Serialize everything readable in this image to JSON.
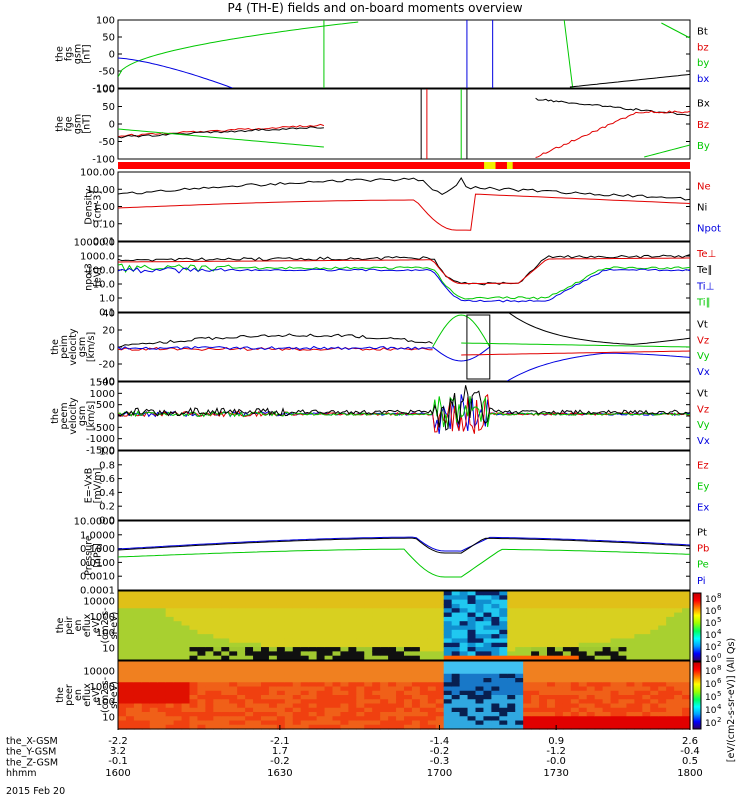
{
  "title": "P4 (TH-E) fields and on-board moments overview",
  "date_label": "2015 Feb 20",
  "colors": {
    "black": "#000000",
    "red": "#e00000",
    "green": "#00c800",
    "blue": "#0000e0",
    "yellow": "#f0f000",
    "bar_red": "#ff0000"
  },
  "chart_data": [
    {
      "type": "line",
      "id": "fgs",
      "ylabel": [
        "the",
        "fgs",
        "gsm",
        "[nT]"
      ],
      "yticks": [
        "100",
        "50",
        "0",
        "-50",
        "-100"
      ],
      "ylim": [
        -100,
        100
      ],
      "legend": [
        {
          "name": "Bt",
          "color": "#000000"
        },
        {
          "name": "bz",
          "color": "#e00000"
        },
        {
          "name": "by",
          "color": "#00c800"
        },
        {
          "name": "bx",
          "color": "#0000e0"
        }
      ]
    },
    {
      "type": "line",
      "id": "fge",
      "ylabel": [
        "the",
        "fge",
        "gsm",
        "[nT]"
      ],
      "yticks": [
        "100",
        "50",
        "0",
        "-50",
        "-100"
      ],
      "ylim": [
        -120,
        120
      ],
      "legend": [
        {
          "name": "Bx",
          "color": "#000000"
        },
        {
          "name": "Bz",
          "color": "#e00000"
        },
        {
          "name": "By",
          "color": "#00c800"
        }
      ]
    },
    {
      "type": "line",
      "id": "density",
      "ylabel": [
        "Density",
        "[cm-3]"
      ],
      "yticks": [
        "100.00",
        "10.00",
        "1.00",
        "0.10",
        "0.01"
      ],
      "ylim": [
        0.005,
        300
      ],
      "scale": "log",
      "legend": [
        {
          "name": "Ne",
          "color": "#e00000"
        },
        {
          "name": "Ni",
          "color": "#000000"
        },
        {
          "name": "Npot",
          "color": "#0000e0"
        }
      ]
    },
    {
      "type": "line",
      "id": "temperature",
      "ylabel": [
        "npot3",
        "[eV]"
      ],
      "yticks": [
        "10000.0",
        "1000.0",
        "100.0",
        "10.0",
        "1.0",
        "0.1"
      ],
      "ylim": [
        0.1,
        10000
      ],
      "scale": "log",
      "legend": [
        {
          "name": "Te⊥",
          "color": "#e00000"
        },
        {
          "name": "Te∥",
          "color": "#000000"
        },
        {
          "name": "Ti⊥",
          "color": "#0000e0"
        },
        {
          "name": "Ti∥",
          "color": "#00c800"
        }
      ]
    },
    {
      "type": "line",
      "id": "peim_velocity",
      "ylabel": [
        "the",
        "peim",
        "velocity",
        "gsm",
        "[km/s]"
      ],
      "yticks": [
        "40",
        "20",
        "0",
        "-20",
        "-40"
      ],
      "ylim": [
        -40,
        40
      ],
      "legend": [
        {
          "name": "Vt",
          "color": "#000000"
        },
        {
          "name": "Vz",
          "color": "#e00000"
        },
        {
          "name": "Vy",
          "color": "#00c800"
        },
        {
          "name": "Vx",
          "color": "#0000e0"
        }
      ]
    },
    {
      "type": "line",
      "id": "peem_velocity",
      "ylabel": [
        "the",
        "peem",
        "velocity",
        "gsm",
        "[km/s]"
      ],
      "yticks": [
        "1500",
        "1000",
        "500",
        "0",
        "-500",
        "-1000",
        "-1500"
      ],
      "ylim": [
        -1500,
        1500
      ],
      "legend": [
        {
          "name": "Vt",
          "color": "#000000"
        },
        {
          "name": "Vz",
          "color": "#e00000"
        },
        {
          "name": "Vy",
          "color": "#00c800"
        },
        {
          "name": "Vx",
          "color": "#0000e0"
        }
      ]
    },
    {
      "type": "line",
      "id": "efield",
      "ylabel": [
        "E=-VxB",
        "[mV/m]"
      ],
      "yticks": [
        "1.0",
        "0.8",
        "0.6",
        "0.4",
        "0.2",
        "0.0"
      ],
      "ylim": [
        0,
        1
      ],
      "legend": [
        {
          "name": "Ez",
          "color": "#e00000"
        },
        {
          "name": "Ey",
          "color": "#00c800"
        },
        {
          "name": "Ex",
          "color": "#0000e0"
        }
      ]
    },
    {
      "type": "line",
      "id": "pressure",
      "ylabel": [
        "Pressure",
        "[nPa]"
      ],
      "yticks": [
        "10.0000",
        "1.0000",
        "0.1000",
        "0.0100",
        "0.0010",
        "0.0001"
      ],
      "ylim": [
        0.0001,
        30
      ],
      "scale": "log",
      "legend": [
        {
          "name": "Pt",
          "color": "#000000"
        },
        {
          "name": "Pb",
          "color": "#e00000"
        },
        {
          "name": "Pe",
          "color": "#00c800"
        },
        {
          "name": "Pi",
          "color": "#0000e0"
        }
      ]
    },
    {
      "type": "heatmap",
      "id": "ion_spectrogram",
      "ylabel": [
        "the",
        "peir",
        "en",
        "eflux",
        "eV/",
        "(cm2-s-",
        "sr-eV)"
      ],
      "yticks": [
        "10000",
        "1000",
        "100",
        "10"
      ],
      "ylim": [
        5,
        25000
      ]
    },
    {
      "type": "heatmap",
      "id": "electron_spectrogram",
      "ylabel": [
        "the",
        "peer",
        "en",
        "eflux",
        "eV/",
        "(cm2-s-",
        "sr-eV)"
      ],
      "yticks": [
        "10000",
        "1000",
        "100",
        "10"
      ],
      "ylim": [
        5,
        25000
      ]
    }
  ],
  "colorbar": {
    "label": "[eV/(cm2-s-sr-eV)] (All Qs)",
    "top_ticks": [
      "10",
      "10",
      "10",
      "10",
      "10",
      "10"
    ],
    "top_exp": [
      "8",
      "6",
      "5",
      "4",
      "2",
      "0"
    ],
    "bottom_ticks": [
      "10",
      "10",
      "10",
      "10",
      "10"
    ],
    "bottom_exp": [
      "8",
      "6",
      "5",
      "4",
      "2"
    ]
  },
  "x_axis": {
    "row_labels": [
      "the_X-GSM",
      "the_Y-GSM",
      "the_Z-GSM",
      "hhmm"
    ],
    "columns": [
      {
        "x": "-2.2",
        "y": "3.2",
        "z": "-0.1",
        "hhmm": "1600"
      },
      {
        "x": "-2.1",
        "y": "1.7",
        "z": "-0.2",
        "hhmm": "1630"
      },
      {
        "x": "-1.4",
        "y": "-0.2",
        "z": "-0.3",
        "hhmm": "1700"
      },
      {
        "x": "0.9",
        "y": "-1.2",
        "z": "-0.0",
        "hhmm": "1730"
      },
      {
        "x": "2.6",
        "y": "-0.4",
        "z": "0.5",
        "hhmm": "1800"
      }
    ]
  }
}
